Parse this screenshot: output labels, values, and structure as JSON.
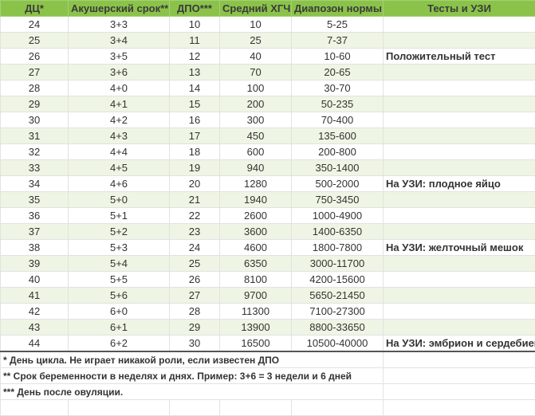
{
  "header": [
    "ДЦ*",
    "Акушерский срок**",
    "ДПО***",
    "Средний ХГЧ",
    "Диапозон нормы",
    "Тесты и УЗИ"
  ],
  "rows": [
    [
      "24",
      "3+3",
      "10",
      "10",
      "5-25",
      ""
    ],
    [
      "25",
      "3+4",
      "11",
      "25",
      "7-37",
      ""
    ],
    [
      "26",
      "3+5",
      "12",
      "40",
      "10-60",
      "Положительный тест"
    ],
    [
      "27",
      "3+6",
      "13",
      "70",
      "20-65",
      ""
    ],
    [
      "28",
      "4+0",
      "14",
      "100",
      "30-70",
      ""
    ],
    [
      "29",
      "4+1",
      "15",
      "200",
      "50-235",
      ""
    ],
    [
      "30",
      "4+2",
      "16",
      "300",
      "70-400",
      ""
    ],
    [
      "31",
      "4+3",
      "17",
      "450",
      "135-600",
      ""
    ],
    [
      "32",
      "4+4",
      "18",
      "600",
      "200-800",
      ""
    ],
    [
      "33",
      "4+5",
      "19",
      "940",
      "350-1400",
      ""
    ],
    [
      "34",
      "4+6",
      "20",
      "1280",
      "500-2000",
      "На УЗИ: плодное яйцо"
    ],
    [
      "35",
      "5+0",
      "21",
      "1940",
      "750-3450",
      ""
    ],
    [
      "36",
      "5+1",
      "22",
      "2600",
      "1000-4900",
      ""
    ],
    [
      "37",
      "5+2",
      "23",
      "3600",
      "1400-6350",
      ""
    ],
    [
      "38",
      "5+3",
      "24",
      "4600",
      "1800-7800",
      "На УЗИ: желточный мешок"
    ],
    [
      "39",
      "5+4",
      "25",
      "6350",
      "3000-11700",
      ""
    ],
    [
      "40",
      "5+5",
      "26",
      "8100",
      "4200-15600",
      ""
    ],
    [
      "41",
      "5+6",
      "27",
      "9700",
      "5650-21450",
      ""
    ],
    [
      "42",
      "6+0",
      "28",
      "11300",
      "7100-27300",
      ""
    ],
    [
      "43",
      "6+1",
      "29",
      "13900",
      "8800-33650",
      ""
    ],
    [
      "44",
      "6+2",
      "30",
      "16500",
      "10500-40000",
      "На УЗИ: эмбрион и сердебиение"
    ]
  ],
  "footnotes": [
    "* День цикла. Не играет никакой роли, если известен ДПО",
    "** Срок беременности в неделях и днях. Пример: 3+6 = 3 недели и 6 дней",
    "*** День после овуляции."
  ],
  "colors": {
    "header_bg": "#8bc34a",
    "alt_row": "#eef5e4"
  }
}
